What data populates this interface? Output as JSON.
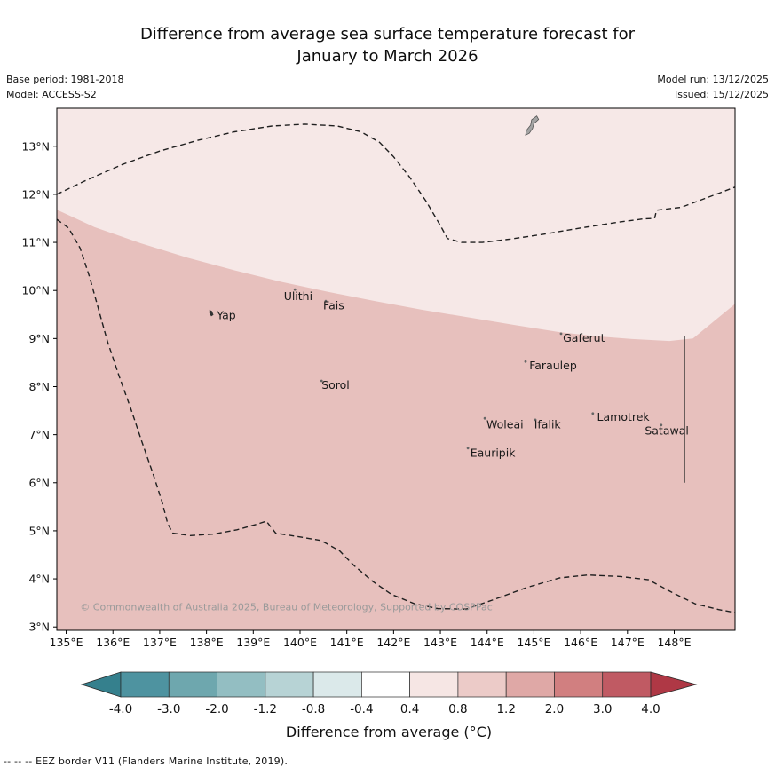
{
  "header": {
    "title_line1": "Difference from average sea surface temperature forecast for",
    "title_line2": "January to March 2026"
  },
  "meta": {
    "base_period": "Base period: 1981-2018",
    "model": "Model: ACCESS-S2",
    "model_run": "Model run: 13/12/2025",
    "issued": "Issued: 15/12/2025"
  },
  "footer": {
    "eez_note": "--  --  -- EEZ border V11 (Flanders Marine Institute, 2019)."
  },
  "chart_data": {
    "type": "map",
    "title": "Difference from average sea surface temperature forecast for January to March 2026",
    "projection": {
      "lon_min": 134.8,
      "lon_max": 149.3,
      "lat_min": 2.93,
      "lat_max": 13.79
    },
    "x_ticks": [
      {
        "value": 135,
        "label": "135°E"
      },
      {
        "value": 136,
        "label": "136°E"
      },
      {
        "value": 137,
        "label": "137°E"
      },
      {
        "value": 138,
        "label": "138°E"
      },
      {
        "value": 139,
        "label": "139°E"
      },
      {
        "value": 140,
        "label": "140°E"
      },
      {
        "value": 141,
        "label": "141°E"
      },
      {
        "value": 142,
        "label": "142°E"
      },
      {
        "value": 143,
        "label": "143°E"
      },
      {
        "value": 144,
        "label": "144°E"
      },
      {
        "value": 145,
        "label": "145°E"
      },
      {
        "value": 146,
        "label": "146°E"
      },
      {
        "value": 147,
        "label": "147°E"
      },
      {
        "value": 148,
        "label": "148°E"
      }
    ],
    "y_ticks": [
      {
        "value": 3,
        "label": "3°N"
      },
      {
        "value": 4,
        "label": "4°N"
      },
      {
        "value": 5,
        "label": "5°N"
      },
      {
        "value": 6,
        "label": "6°N"
      },
      {
        "value": 7,
        "label": "7°N"
      },
      {
        "value": 8,
        "label": "8°N"
      },
      {
        "value": 9,
        "label": "9°N"
      },
      {
        "value": 10,
        "label": "10°N"
      },
      {
        "value": 11,
        "label": "11°N"
      },
      {
        "value": 12,
        "label": "12°N"
      },
      {
        "value": 13,
        "label": "13°N"
      }
    ],
    "regions": [
      {
        "band": "+0.4 to +0.8 °C",
        "color": "#f6e8e7"
      },
      {
        "band": "+0.8 to +1.2 °C",
        "color": "#e7c0bd",
        "polygon": [
          [
            134.8,
            11.68
          ],
          [
            135.6,
            11.32
          ],
          [
            136.6,
            10.98
          ],
          [
            137.6,
            10.68
          ],
          [
            138.6,
            10.42
          ],
          [
            139.6,
            10.18
          ],
          [
            140.6,
            9.97
          ],
          [
            141.6,
            9.78
          ],
          [
            142.6,
            9.6
          ],
          [
            143.6,
            9.44
          ],
          [
            144.6,
            9.28
          ],
          [
            145.5,
            9.14
          ],
          [
            146.3,
            9.05
          ],
          [
            147.1,
            8.99
          ],
          [
            147.9,
            8.95
          ],
          [
            148.4,
            9.0
          ],
          [
            149.3,
            9.72
          ],
          [
            149.3,
            2.9
          ],
          [
            134.8,
            2.9
          ]
        ]
      }
    ],
    "eez_border": {
      "label": "EEZ border V11",
      "style": "dashed",
      "color": "#1f1f1f",
      "segments": [
        [
          [
            134.8,
            12.0
          ],
          [
            135.4,
            12.28
          ],
          [
            136.2,
            12.62
          ],
          [
            137.0,
            12.9
          ],
          [
            137.8,
            13.12
          ],
          [
            138.6,
            13.3
          ],
          [
            139.4,
            13.42
          ],
          [
            140.1,
            13.46
          ],
          [
            140.8,
            13.42
          ],
          [
            141.3,
            13.3
          ],
          [
            141.7,
            13.08
          ],
          [
            142.0,
            12.78
          ],
          [
            142.35,
            12.35
          ],
          [
            142.7,
            11.85
          ],
          [
            143.0,
            11.35
          ],
          [
            143.15,
            11.08
          ],
          [
            143.45,
            11.0
          ],
          [
            143.9,
            11.0
          ],
          [
            144.5,
            11.07
          ],
          [
            145.2,
            11.17
          ],
          [
            146.0,
            11.3
          ],
          [
            146.8,
            11.42
          ],
          [
            147.35,
            11.49
          ],
          [
            147.58,
            11.5
          ],
          [
            147.62,
            11.67
          ],
          [
            148.15,
            11.73
          ],
          [
            148.7,
            11.93
          ],
          [
            149.3,
            12.15
          ]
        ],
        [
          [
            134.8,
            11.48
          ],
          [
            135.05,
            11.3
          ],
          [
            135.3,
            10.88
          ],
          [
            135.5,
            10.28
          ],
          [
            135.68,
            9.65
          ],
          [
            135.88,
            8.95
          ],
          [
            136.12,
            8.25
          ],
          [
            136.38,
            7.55
          ],
          [
            136.62,
            6.85
          ],
          [
            136.86,
            6.18
          ],
          [
            137.05,
            5.6
          ],
          [
            137.17,
            5.15
          ],
          [
            137.28,
            4.95
          ],
          [
            137.65,
            4.9
          ],
          [
            138.15,
            4.93
          ],
          [
            138.65,
            5.02
          ],
          [
            139.05,
            5.13
          ],
          [
            139.28,
            5.2
          ],
          [
            139.48,
            4.95
          ],
          [
            139.95,
            4.88
          ],
          [
            140.45,
            4.8
          ],
          [
            140.85,
            4.58
          ],
          [
            141.15,
            4.28
          ],
          [
            141.55,
            3.95
          ],
          [
            141.95,
            3.68
          ],
          [
            142.45,
            3.48
          ],
          [
            142.95,
            3.38
          ],
          [
            143.55,
            3.37
          ],
          [
            144.15,
            3.57
          ],
          [
            144.85,
            3.82
          ],
          [
            145.55,
            4.02
          ],
          [
            146.15,
            4.08
          ],
          [
            146.85,
            4.05
          ],
          [
            147.45,
            3.98
          ],
          [
            147.95,
            3.72
          ],
          [
            148.45,
            3.48
          ],
          [
            148.95,
            3.36
          ],
          [
            149.3,
            3.3
          ]
        ]
      ]
    },
    "boundary_line": {
      "from": [
        148.22,
        9.05
      ],
      "to": [
        148.22,
        6.0
      ]
    },
    "guam": {
      "fill": "#a3a3a3",
      "polygon": [
        [
          145.06,
          13.63
        ],
        [
          145.1,
          13.56
        ],
        [
          145.0,
          13.47
        ],
        [
          144.97,
          13.37
        ],
        [
          144.9,
          13.27
        ],
        [
          144.82,
          13.23
        ],
        [
          144.84,
          13.33
        ],
        [
          144.93,
          13.44
        ],
        [
          144.95,
          13.55
        ]
      ]
    },
    "yap_shape": [
      [
        138.06,
        9.6
      ],
      [
        138.12,
        9.57
      ],
      [
        138.15,
        9.49
      ],
      [
        138.1,
        9.46
      ],
      [
        138.06,
        9.53
      ]
    ],
    "islands": [
      {
        "name": "Yap",
        "marker": [
          138.1,
          9.52
        ],
        "dot": false,
        "label_pos": [
          138.22,
          9.4
        ],
        "anchor": "start"
      },
      {
        "name": "Ulithi",
        "marker": [
          139.89,
          10.02
        ],
        "dot": true,
        "label_pos": [
          139.96,
          9.8
        ],
        "anchor": "middle"
      },
      {
        "name": "Fais",
        "marker": [
          140.55,
          9.78
        ],
        "dot": true,
        "label_pos": [
          140.72,
          9.61
        ],
        "anchor": "middle"
      },
      {
        "name": "Sorol",
        "marker": [
          140.46,
          8.12
        ],
        "dot": true,
        "label_pos": [
          140.76,
          7.95
        ],
        "anchor": "middle"
      },
      {
        "name": "Gaferut",
        "marker": [
          145.58,
          9.1
        ],
        "dot": true,
        "label_pos": [
          146.07,
          8.93
        ],
        "anchor": "middle"
      },
      {
        "name": "Faraulep",
        "marker": [
          144.82,
          8.52
        ],
        "dot": true,
        "label_pos": [
          145.41,
          8.36
        ],
        "anchor": "middle"
      },
      {
        "name": "Woleai",
        "marker": [
          143.95,
          7.34
        ],
        "dot": true,
        "label_pos": [
          144.38,
          7.13
        ],
        "anchor": "middle"
      },
      {
        "name": "Ifalik",
        "marker": [
          145.03,
          7.31
        ],
        "dot": true,
        "label_pos": [
          145.29,
          7.13
        ],
        "anchor": "middle"
      },
      {
        "name": "Lamotrek",
        "marker": [
          146.26,
          7.44
        ],
        "dot": true,
        "label_pos": [
          146.91,
          7.29
        ],
        "anchor": "middle"
      },
      {
        "name": "Satawal",
        "marker": [
          147.72,
          7.2
        ],
        "dot": true,
        "label_pos": [
          147.84,
          7.0
        ],
        "anchor": "middle"
      },
      {
        "name": "Eauripik",
        "marker": [
          143.59,
          6.72
        ],
        "dot": true,
        "label_pos": [
          144.12,
          6.54
        ],
        "anchor": "middle"
      }
    ],
    "copyright": "© Commonwealth of Australia 2025, Bureau of Meteorology, Supported by COSPPac",
    "copyright_pos": [
      135.3,
      3.35
    ],
    "colorbar": {
      "title": "Difference from average (°C)",
      "tick_labels": [
        "-4.0",
        "-3.0",
        "-2.0",
        "-1.2",
        "-0.8",
        "-0.4",
        "0.4",
        "0.8",
        "1.2",
        "2.0",
        "3.0",
        "4.0"
      ],
      "segment_colors": [
        "#4e93a0",
        "#6ea7ae",
        "#93bec2",
        "#b7d3d5",
        "#dbe9ea",
        "#ffffff",
        "#f6e6e4",
        "#eccbc8",
        "#dfa8a6",
        "#d17f80",
        "#c05a63"
      ],
      "arrow_left_color": "#35808d",
      "arrow_right_color": "#af3845"
    }
  }
}
